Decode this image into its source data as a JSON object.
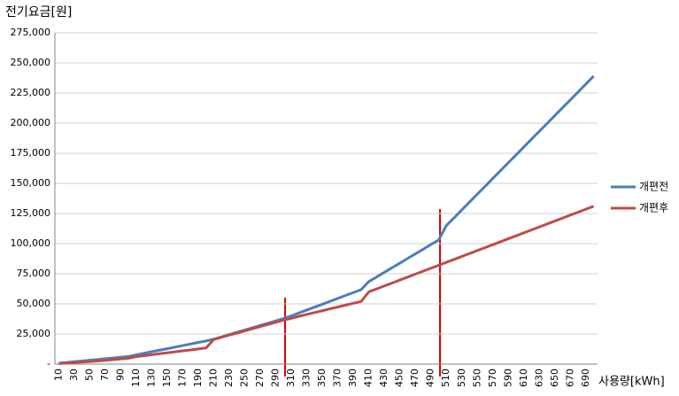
{
  "chart_data": {
    "type": "line",
    "y_label": "전기요금[원]",
    "x_label": "사용량[kWh]",
    "categories": [
      "10",
      null,
      "30",
      null,
      "50",
      null,
      "70",
      null,
      "90",
      null,
      "110",
      null,
      "130",
      null,
      "150",
      null,
      "170",
      null,
      "190",
      null,
      "210",
      null,
      "230",
      null,
      "250",
      null,
      "270",
      null,
      "290",
      null,
      "310",
      null,
      "330",
      null,
      "350",
      null,
      "370",
      null,
      "390",
      null,
      "410",
      null,
      "430",
      null,
      "450",
      null,
      "470",
      null,
      "490",
      null,
      "510",
      null,
      "530",
      null,
      "550",
      null,
      "570",
      null,
      "590",
      null,
      "610",
      null,
      "630",
      null,
      "650",
      null,
      "670",
      null,
      "690",
      null
    ],
    "series": [
      {
        "name": "개편전",
        "color": "#4a7ebb",
        "values": [
          700,
          1300,
          2000,
          2600,
          3200,
          3800,
          4500,
          5100,
          5700,
          6300,
          7700,
          9000,
          10300,
          11600,
          12800,
          14100,
          15400,
          16700,
          18000,
          19200,
          20700,
          22600,
          24500,
          26400,
          28300,
          30200,
          32100,
          34000,
          35900,
          37800,
          40000,
          42500,
          44900,
          47300,
          49700,
          52100,
          54600,
          57000,
          59400,
          61800,
          68500,
          72300,
          76200,
          80000,
          83800,
          87700,
          91500,
          95300,
          99200,
          103000,
          115000,
          121500,
          128100,
          134600,
          141100,
          147600,
          154200,
          160700,
          167200,
          173700,
          180300,
          186800,
          193300,
          199800,
          206400,
          212900,
          219400,
          225900,
          232500,
          239000
        ]
      },
      {
        "name": "개편후",
        "color": "#be4b48",
        "values": [
          500,
          900,
          1300,
          1700,
          2100,
          2600,
          3100,
          3700,
          4300,
          4900,
          6200,
          7000,
          7800,
          8600,
          9400,
          10200,
          11000,
          11800,
          12600,
          13400,
          20500,
          22300,
          24100,
          25800,
          27600,
          29400,
          31200,
          33000,
          34700,
          36500,
          38000,
          39700,
          41200,
          42800,
          44300,
          45900,
          47400,
          49000,
          50500,
          52000,
          60000,
          62400,
          64900,
          67300,
          69800,
          72200,
          74700,
          77100,
          79600,
          82000,
          84500,
          86900,
          89400,
          91800,
          94300,
          96700,
          99200,
          101600,
          104100,
          106500,
          109000,
          111400,
          113900,
          116300,
          118800,
          121200,
          123700,
          126100,
          128600,
          131000
        ]
      }
    ],
    "ylim": [
      0,
      275000
    ],
    "yticks": [
      {
        "value": 0,
        "label": "-"
      },
      {
        "value": 25000,
        "label": "25,000"
      },
      {
        "value": 50000,
        "label": "50,000"
      },
      {
        "value": 75000,
        "label": "75,000"
      },
      {
        "value": 100000,
        "label": "100,000"
      },
      {
        "value": 125000,
        "label": "125,000"
      },
      {
        "value": 150000,
        "label": "150,000"
      },
      {
        "value": 175000,
        "label": "175,000"
      },
      {
        "value": 200000,
        "label": "200,000"
      },
      {
        "value": 225000,
        "label": "225,000"
      },
      {
        "value": 250000,
        "label": "250,000"
      },
      {
        "value": 275000,
        "label": "275,000"
      }
    ],
    "grid": true,
    "legend": "right"
  }
}
